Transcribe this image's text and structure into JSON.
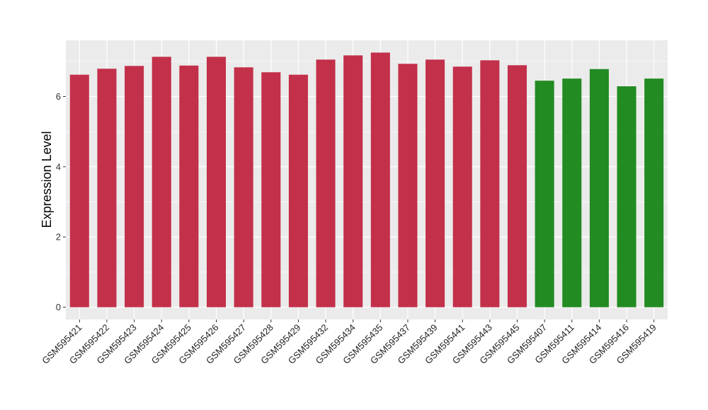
{
  "chart_data": {
    "type": "bar",
    "title": "",
    "xlabel": "",
    "ylabel": "Expression Level",
    "ylim": [
      -0.35,
      7.6
    ],
    "yticks": [
      0,
      2,
      4,
      6
    ],
    "grid": true,
    "legend": "none",
    "categories": [
      "GSM595421",
      "GSM595422",
      "GSM595423",
      "GSM595424",
      "GSM595425",
      "GSM595426",
      "GSM595427",
      "GSM595428",
      "GSM595429",
      "GSM595432",
      "GSM595434",
      "GSM595435",
      "GSM595437",
      "GSM595439",
      "GSM595441",
      "GSM595443",
      "GSM595445",
      "GSM595407",
      "GSM595411",
      "GSM595414",
      "GSM595416",
      "GSM595419"
    ],
    "values": [
      6.62,
      6.79,
      6.87,
      7.13,
      6.88,
      7.13,
      6.83,
      6.69,
      6.62,
      7.05,
      7.17,
      7.25,
      6.93,
      7.05,
      6.85,
      7.03,
      6.89,
      6.45,
      6.51,
      6.78,
      6.29,
      6.51
    ],
    "bar_colors": [
      "#c3304a",
      "#c3304a",
      "#c3304a",
      "#c3304a",
      "#c3304a",
      "#c3304a",
      "#c3304a",
      "#c3304a",
      "#c3304a",
      "#c3304a",
      "#c3304a",
      "#c3304a",
      "#c3304a",
      "#c3304a",
      "#c3304a",
      "#c3304a",
      "#c3304a",
      "#228b22",
      "#228b22",
      "#228b22",
      "#228b22",
      "#228b22"
    ],
    "panel_background": "#ebebeb",
    "grid_color": "#ffffff"
  }
}
